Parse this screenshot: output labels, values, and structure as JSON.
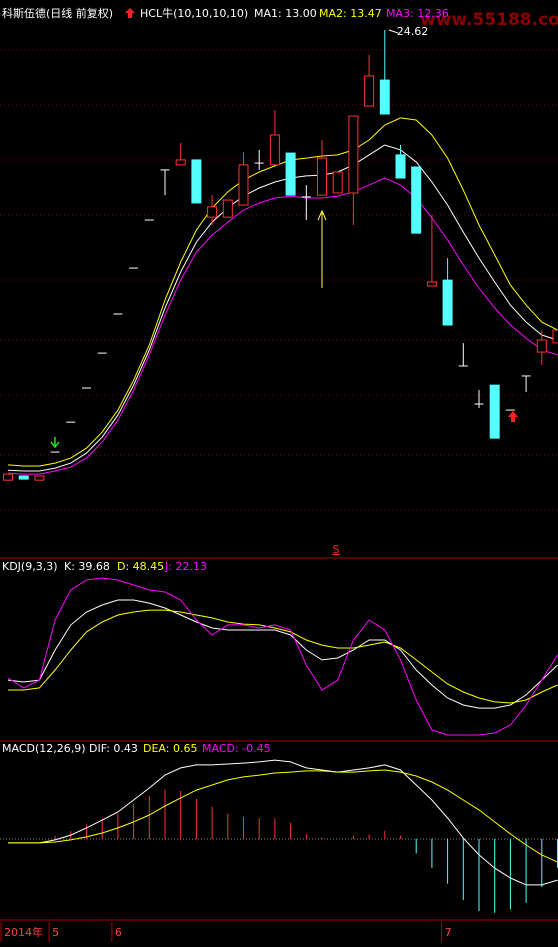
{
  "chart_data": [
    {
      "type": "candlestick",
      "title": "科斯伍德(日线 前复权)",
      "indicator": "HCL牛(10,10,10,10)",
      "watermark": "www.55188.com",
      "signal_label": "S",
      "categories": [
        "2014年",
        null,
        null,
        "5",
        null,
        null,
        null,
        "6",
        null,
        null,
        null,
        null,
        null,
        null,
        null,
        null,
        null,
        null,
        null,
        null,
        null,
        null,
        null,
        null,
        null,
        null,
        null,
        null,
        "7",
        null,
        null,
        null,
        null,
        null,
        null,
        null
      ],
      "open": [
        7.47,
        7.63,
        7.47,
        8.54,
        9.68,
        10.98,
        12.31,
        13.8,
        15.55,
        17.38,
        19.29,
        19.48,
        19.67,
        17.49,
        17.49,
        17.95,
        19.55,
        19.48,
        19.93,
        18.26,
        18.33,
        18.41,
        18.41,
        21.72,
        22.71,
        19.86,
        19.4,
        14.87,
        15.09,
        11.82,
        10.37,
        11.09,
        10.14,
        11.44,
        12.35,
        12.7
      ],
      "high": [
        7.7,
        7.63,
        7.63,
        8.54,
        9.68,
        10.98,
        12.31,
        13.8,
        15.55,
        17.38,
        19.29,
        20.31,
        19.67,
        18.33,
        18.14,
        19.97,
        20.05,
        21.57,
        19.93,
        18.71,
        20.43,
        19.21,
        21.34,
        23.67,
        24.62,
        20.24,
        19.4,
        17.57,
        15.93,
        12.69,
        10.9,
        11.09,
        10.14,
        11.44,
        13.19,
        13.19
      ],
      "low": [
        7.47,
        7.51,
        7.47,
        8.54,
        9.68,
        10.98,
        12.31,
        13.8,
        15.55,
        17.38,
        18.33,
        19.48,
        18.03,
        17.19,
        17.49,
        17.95,
        19.29,
        19.48,
        18.33,
        17.38,
        18.33,
        18.41,
        17.19,
        21.72,
        21.42,
        18.98,
        16.88,
        14.87,
        13.38,
        11.82,
        10.22,
        9.07,
        10.14,
        10.83,
        11.86,
        12.7
      ],
      "close": [
        7.7,
        7.51,
        7.63,
        8.54,
        9.68,
        10.98,
        12.31,
        13.8,
        15.55,
        17.38,
        19.29,
        19.67,
        18.03,
        17.88,
        18.14,
        19.48,
        19.55,
        20.62,
        18.33,
        18.26,
        19.74,
        19.21,
        21.34,
        22.87,
        21.42,
        18.98,
        16.88,
        15.02,
        13.38,
        11.82,
        10.37,
        9.07,
        10.14,
        11.44,
        12.81,
        13.19
      ],
      "up_color": "#ff3232",
      "down_color": "#54ffff",
      "flat_color": "#ffffff",
      "ylim": [
        5,
        25
      ],
      "series": [
        {
          "name": "MA1: 13.00",
          "color": "#ffffff",
          "values": [
            7.85,
            7.82,
            7.82,
            7.93,
            8.12,
            8.5,
            9.11,
            9.95,
            11.09,
            12.43,
            14.03,
            15.4,
            16.54,
            17.3,
            17.84,
            18.29,
            18.6,
            18.83,
            18.98,
            19.06,
            19.09,
            19.21,
            19.48,
            19.86,
            20.24,
            20.05,
            19.59,
            18.83,
            17.95,
            16.92,
            15.93,
            15.02,
            14.14,
            13.49,
            13.0,
            12.81
          ]
        },
        {
          "name": "MA2: 13.47",
          "color": "#ffff00",
          "values": [
            8.05,
            8.01,
            8.01,
            8.12,
            8.31,
            8.69,
            9.3,
            10.14,
            11.28,
            12.62,
            14.33,
            15.78,
            17.0,
            17.84,
            18.45,
            18.9,
            19.21,
            19.44,
            19.67,
            19.74,
            19.82,
            19.86,
            20.05,
            20.43,
            21.0,
            21.27,
            21.19,
            20.62,
            19.74,
            18.52,
            17.19,
            16.05,
            14.9,
            14.14,
            13.49,
            13.19
          ]
        },
        {
          "name": "MA3: 12.36",
          "color": "#ff00ff",
          "values": [
            7.74,
            7.7,
            7.7,
            7.82,
            7.97,
            8.31,
            8.92,
            9.76,
            10.9,
            12.24,
            13.76,
            15.09,
            16.16,
            16.81,
            17.3,
            17.76,
            18.03,
            18.22,
            18.29,
            18.22,
            18.22,
            18.29,
            18.45,
            18.71,
            18.98,
            18.71,
            18.22,
            17.46,
            16.62,
            15.67,
            14.79,
            14.03,
            13.38,
            12.88,
            12.43,
            12.24
          ]
        }
      ]
    },
    {
      "type": "line",
      "title": "KDJ(9,3,3)",
      "ylim": [
        -10,
        110
      ],
      "series": [
        {
          "name": "K: 39.68",
          "color": "#ffffff",
          "values": [
            31.1,
            29.8,
            31.1,
            51.7,
            68.9,
            77.8,
            82.6,
            86.0,
            86.0,
            83.9,
            80.5,
            75.7,
            70.9,
            66.8,
            65.4,
            65.4,
            65.4,
            65.4,
            62.0,
            51.7,
            44.9,
            46.2,
            51.7,
            58.6,
            58.6,
            51.7,
            38.0,
            27.7,
            18.8,
            14.0,
            11.9,
            11.9,
            14.0,
            20.9,
            31.1,
            41.4
          ]
        },
        {
          "name": "D: 48.45",
          "color": "#ffff00",
          "values": [
            24.3,
            24.3,
            25.7,
            38.0,
            51.7,
            64.1,
            70.9,
            75.7,
            77.8,
            79.1,
            79.1,
            77.8,
            75.7,
            73.7,
            70.9,
            69.5,
            68.9,
            66.8,
            64.1,
            58.6,
            55.1,
            53.1,
            53.1,
            55.1,
            57.2,
            53.1,
            44.9,
            36.6,
            28.4,
            22.9,
            18.8,
            16.1,
            15.4,
            17.4,
            22.9,
            27.7
          ]
        },
        {
          "name": "J: 22.13",
          "color": "#ff00ff",
          "values": [
            32.5,
            25.7,
            31.1,
            72.3,
            92.9,
            99.7,
            101.1,
            99.7,
            96.3,
            92.9,
            91.5,
            86.0,
            72.3,
            62.0,
            68.9,
            68.9,
            66.8,
            68.9,
            65.4,
            41.4,
            24.3,
            31.1,
            58.6,
            72.3,
            65.4,
            44.9,
            17.4,
            -3.1,
            -6.6,
            -6.6,
            -6.6,
            -5.2,
            0.3,
            14.0,
            31.1,
            48.3
          ]
        }
      ]
    },
    {
      "type": "macd",
      "title": "MACD(12,26,9)",
      "ylim": [
        -2.5,
        3.0
      ],
      "series": [
        {
          "name": "DIF: 0.43",
          "color": "#ffffff",
          "values": [
            -0.13,
            -0.13,
            -0.13,
            -0.03,
            0.13,
            0.37,
            0.63,
            0.9,
            1.3,
            1.7,
            2.13,
            2.37,
            2.47,
            2.47,
            2.5,
            2.53,
            2.57,
            2.63,
            2.57,
            2.37,
            2.3,
            2.23,
            2.3,
            2.37,
            2.47,
            2.3,
            1.8,
            1.3,
            0.7,
            0.03,
            -0.53,
            -0.97,
            -1.3,
            -1.53,
            -1.53,
            -1.37
          ]
        },
        {
          "name": "DEA: 0.65",
          "color": "#ffff00",
          "values": [
            -0.13,
            -0.13,
            -0.13,
            -0.1,
            -0.03,
            0.07,
            0.2,
            0.37,
            0.57,
            0.8,
            1.1,
            1.37,
            1.63,
            1.8,
            1.97,
            2.07,
            2.13,
            2.2,
            2.23,
            2.27,
            2.27,
            2.23,
            2.23,
            2.27,
            2.3,
            2.23,
            2.1,
            1.9,
            1.63,
            1.3,
            0.97,
            0.57,
            0.17,
            -0.2,
            -0.53,
            -0.77
          ]
        }
      ],
      "bars": {
        "name": "MACD: -0.45",
        "color": "#ff00ff",
        "up_color": "#ff3232",
        "down_color": "#54ffff",
        "values": [
          0,
          0,
          0,
          0.11,
          0.26,
          0.48,
          0.69,
          0.85,
          1.17,
          1.44,
          1.65,
          1.6,
          1.34,
          1.07,
          0.85,
          0.74,
          0.7,
          0.69,
          0.54,
          0.16,
          0.05,
          0,
          0.11,
          0.16,
          0.27,
          0.11,
          -0.48,
          -0.96,
          -1.49,
          -2.03,
          -2.4,
          -2.46,
          -2.35,
          -2.13,
          -1.6,
          -0.96
        ]
      }
    }
  ]
}
